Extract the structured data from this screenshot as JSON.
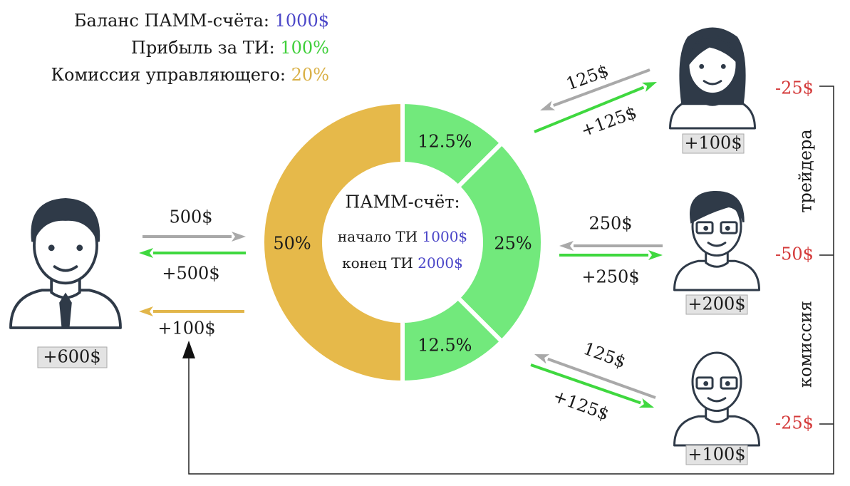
{
  "header": {
    "lines": [
      {
        "label": "Баланс ПАММ-счёта:",
        "value": "1000$"
      },
      {
        "label": "Прибыль за ТИ:",
        "value": "100%"
      },
      {
        "label": "Комиссия управляющего:",
        "value": "20%"
      }
    ]
  },
  "donut": {
    "title": "ПАММ-счёт:",
    "start": {
      "label": "начало ТИ",
      "value": "1000$"
    },
    "end": {
      "label": "конец ТИ",
      "value": "2000$"
    },
    "segments": [
      {
        "label": "50%",
        "value": 50,
        "color": "#e6b94a"
      },
      {
        "label": "12.5%",
        "value": 12.5,
        "color": "#72e97c"
      },
      {
        "label": "25%",
        "value": 25,
        "color": "#72e97c"
      },
      {
        "label": "12.5%",
        "value": 12.5,
        "color": "#72e97c"
      }
    ]
  },
  "investor": {
    "amount": "+600$",
    "flows": [
      "500$",
      "+500$",
      "+100$"
    ]
  },
  "traders": [
    {
      "amount": "+100$",
      "out": "125$",
      "in": "+125$"
    },
    {
      "amount": "+200$",
      "out": "250$",
      "in": "+250$"
    },
    {
      "amount": "+100$",
      "out": "125$",
      "in": "+125$"
    }
  ],
  "commission": {
    "amounts": [
      "-25$",
      "-50$",
      "-25$"
    ],
    "labels": [
      "трейдера",
      "комиссия"
    ]
  }
}
